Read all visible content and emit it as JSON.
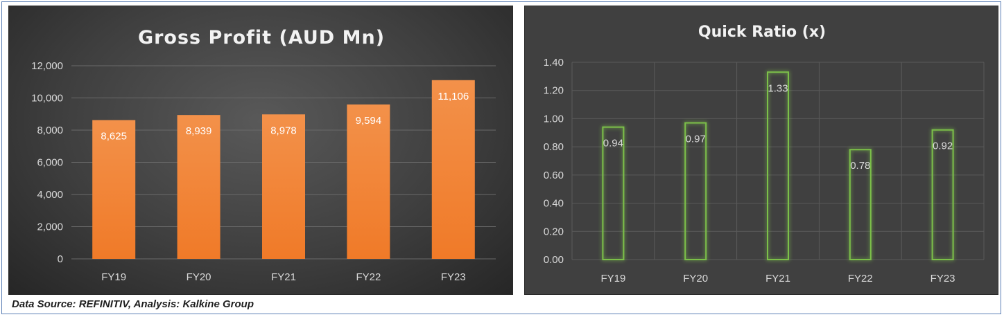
{
  "footer": "Data Source: REFINITIV, Analysis: Kalkine Group",
  "chart_data": [
    {
      "type": "bar",
      "title": "Gross Profit (AUD Mn)",
      "categories": [
        "FY19",
        "FY20",
        "FY21",
        "FY22",
        "FY23"
      ],
      "values": [
        8625,
        8939,
        8978,
        9594,
        11106
      ],
      "value_labels": [
        "8,625",
        "8,939",
        "8,978",
        "9,594",
        "11,106"
      ],
      "ylim": [
        0,
        12000
      ],
      "yticks": [
        0,
        2000,
        4000,
        6000,
        8000,
        10000,
        12000
      ],
      "ytick_labels": [
        "0",
        "2,000",
        "4,000",
        "6,000",
        "8,000",
        "10,000",
        "12,000"
      ],
      "grid": true,
      "bar_color": "#f07a28",
      "legend": "none"
    },
    {
      "type": "bar",
      "title": "Quick Ratio (x)",
      "categories": [
        "FY19",
        "FY20",
        "FY21",
        "FY22",
        "FY23"
      ],
      "values": [
        0.94,
        0.97,
        1.33,
        0.78,
        0.92
      ],
      "value_labels": [
        "0.94",
        "0.97",
        "1.33",
        "0.78",
        "0.92"
      ],
      "ylim": [
        0,
        1.4
      ],
      "yticks": [
        0,
        0.2,
        0.4,
        0.6,
        0.8,
        1.0,
        1.2,
        1.4
      ],
      "ytick_labels": [
        "0.00",
        "0.20",
        "0.40",
        "0.60",
        "0.80",
        "1.00",
        "1.20",
        "1.40"
      ],
      "grid": true,
      "bar_outline_color": "#7cc04a",
      "legend": "none"
    }
  ]
}
